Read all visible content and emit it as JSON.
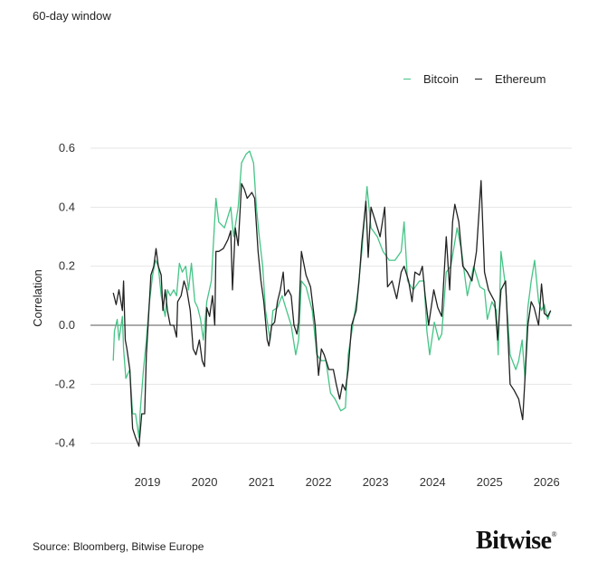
{
  "subtitle": "60-day window",
  "source": "Source: Bloomberg, Bitwise Europe",
  "logo": "Bitwise",
  "colors": {
    "bitcoin": "#45c486",
    "ethereum": "#222222",
    "grid": "#e6e6e6",
    "zero": "#555555"
  },
  "chart_data": {
    "type": "line",
    "title": "",
    "xlabel": "",
    "ylabel": "Correlation",
    "xlim": [
      2018.0,
      2026.44
    ],
    "ylim": [
      -0.42,
      0.6
    ],
    "yticks": [
      0.6,
      0.4,
      0.2,
      0.0,
      -0.2,
      -0.4
    ],
    "ytick_labels": [
      "0.6",
      "0.4",
      "0.2",
      "0.0",
      "-0.2",
      "-0.4"
    ],
    "xticks": [
      2019,
      2020,
      2021,
      2022,
      2023,
      2024,
      2025,
      2026
    ],
    "xtick_labels": [
      "2019",
      "2020",
      "2021",
      "2022",
      "2023",
      "2024",
      "2025",
      "2026"
    ],
    "grid": true,
    "legend_position": "top-right",
    "series": [
      {
        "name": "Bitcoin",
        "color": "#45c486",
        "points": [
          [
            2018.4,
            -0.12
          ],
          [
            2018.42,
            -0.02
          ],
          [
            2018.47,
            0.02
          ],
          [
            2018.5,
            -0.05
          ],
          [
            2018.56,
            0.03
          ],
          [
            2018.58,
            -0.08
          ],
          [
            2018.62,
            -0.18
          ],
          [
            2018.69,
            -0.15
          ],
          [
            2018.74,
            -0.3
          ],
          [
            2018.79,
            -0.3
          ],
          [
            2018.85,
            -0.38
          ],
          [
            2018.87,
            -0.3
          ],
          [
            2018.93,
            -0.15
          ],
          [
            2018.98,
            -0.05
          ],
          [
            2019.03,
            0.07
          ],
          [
            2019.09,
            0.17
          ],
          [
            2019.14,
            0.22
          ],
          [
            2019.19,
            0.2
          ],
          [
            2019.24,
            0.1
          ],
          [
            2019.31,
            0.03
          ],
          [
            2019.35,
            0.12
          ],
          [
            2019.4,
            0.1
          ],
          [
            2019.46,
            0.12
          ],
          [
            2019.51,
            0.1
          ],
          [
            2019.56,
            0.21
          ],
          [
            2019.61,
            0.18
          ],
          [
            2019.67,
            0.2
          ],
          [
            2019.72,
            0.12
          ],
          [
            2019.77,
            0.21
          ],
          [
            2019.83,
            0.08
          ],
          [
            2019.88,
            0.06
          ],
          [
            2019.93,
            0.02
          ],
          [
            2019.98,
            -0.05
          ],
          [
            2020.04,
            0.08
          ],
          [
            2020.12,
            0.15
          ],
          [
            2020.2,
            0.43
          ],
          [
            2020.25,
            0.35
          ],
          [
            2020.35,
            0.33
          ],
          [
            2020.46,
            0.4
          ],
          [
            2020.51,
            0.3
          ],
          [
            2020.59,
            0.4
          ],
          [
            2020.65,
            0.55
          ],
          [
            2020.73,
            0.58
          ],
          [
            2020.79,
            0.59
          ],
          [
            2020.86,
            0.55
          ],
          [
            2020.91,
            0.4
          ],
          [
            2020.96,
            0.3
          ],
          [
            2021.02,
            0.2
          ],
          [
            2021.07,
            0.05
          ],
          [
            2021.15,
            -0.05
          ],
          [
            2021.2,
            0.05
          ],
          [
            2021.28,
            0.06
          ],
          [
            2021.36,
            0.1
          ],
          [
            2021.44,
            0.05
          ],
          [
            2021.52,
            0.0
          ],
          [
            2021.6,
            -0.1
          ],
          [
            2021.65,
            -0.05
          ],
          [
            2021.7,
            0.15
          ],
          [
            2021.78,
            0.13
          ],
          [
            2021.89,
            0.05
          ],
          [
            2021.97,
            -0.1
          ],
          [
            2022.05,
            -0.12
          ],
          [
            2022.13,
            -0.12
          ],
          [
            2022.21,
            -0.23
          ],
          [
            2022.29,
            -0.25
          ],
          [
            2022.39,
            -0.29
          ],
          [
            2022.47,
            -0.28
          ],
          [
            2022.52,
            -0.1
          ],
          [
            2022.6,
            0.0
          ],
          [
            2022.68,
            0.1
          ],
          [
            2022.76,
            0.25
          ],
          [
            2022.85,
            0.47
          ],
          [
            2022.92,
            0.33
          ],
          [
            2023.03,
            0.3
          ],
          [
            2023.13,
            0.25
          ],
          [
            2023.24,
            0.22
          ],
          [
            2023.34,
            0.22
          ],
          [
            2023.45,
            0.25
          ],
          [
            2023.5,
            0.35
          ],
          [
            2023.56,
            0.15
          ],
          [
            2023.66,
            0.12
          ],
          [
            2023.77,
            0.15
          ],
          [
            2023.85,
            0.15
          ],
          [
            2023.9,
            -0.02
          ],
          [
            2023.95,
            -0.1
          ],
          [
            2024.03,
            0.01
          ],
          [
            2024.11,
            -0.05
          ],
          [
            2024.16,
            -0.03
          ],
          [
            2024.24,
            0.18
          ],
          [
            2024.32,
            0.2
          ],
          [
            2024.43,
            0.33
          ],
          [
            2024.51,
            0.25
          ],
          [
            2024.61,
            0.1
          ],
          [
            2024.72,
            0.2
          ],
          [
            2024.83,
            0.13
          ],
          [
            2024.91,
            0.12
          ],
          [
            2024.96,
            0.02
          ],
          [
            2025.04,
            0.08
          ],
          [
            2025.12,
            0.05
          ],
          [
            2025.15,
            -0.1
          ],
          [
            2025.2,
            0.25
          ],
          [
            2025.28,
            0.13
          ],
          [
            2025.36,
            -0.1
          ],
          [
            2025.46,
            -0.15
          ],
          [
            2025.51,
            -0.12
          ],
          [
            2025.57,
            -0.05
          ],
          [
            2025.62,
            -0.18
          ],
          [
            2025.67,
            0.06
          ],
          [
            2025.73,
            0.15
          ],
          [
            2025.79,
            0.22
          ],
          [
            2025.86,
            0.08
          ],
          [
            2025.91,
            0.05
          ],
          [
            2025.96,
            0.07
          ],
          [
            2026.02,
            0.02
          ],
          [
            2026.07,
            0.05
          ]
        ]
      },
      {
        "name": "Ethereum",
        "color": "#222222",
        "points": [
          [
            2018.4,
            0.11
          ],
          [
            2018.45,
            0.07
          ],
          [
            2018.5,
            0.12
          ],
          [
            2018.56,
            0.05
          ],
          [
            2018.58,
            0.15
          ],
          [
            2018.61,
            -0.05
          ],
          [
            2018.64,
            -0.08
          ],
          [
            2018.69,
            -0.15
          ],
          [
            2018.74,
            -0.35
          ],
          [
            2018.79,
            -0.38
          ],
          [
            2018.85,
            -0.41
          ],
          [
            2018.9,
            -0.3
          ],
          [
            2018.95,
            -0.3
          ],
          [
            2018.98,
            -0.1
          ],
          [
            2019.01,
            0.0
          ],
          [
            2019.06,
            0.17
          ],
          [
            2019.11,
            0.2
          ],
          [
            2019.15,
            0.26
          ],
          [
            2019.19,
            0.2
          ],
          [
            2019.24,
            0.17
          ],
          [
            2019.27,
            0.05
          ],
          [
            2019.31,
            0.12
          ],
          [
            2019.35,
            0.05
          ],
          [
            2019.4,
            0.0
          ],
          [
            2019.46,
            0.0
          ],
          [
            2019.51,
            -0.04
          ],
          [
            2019.53,
            0.08
          ],
          [
            2019.59,
            0.1
          ],
          [
            2019.64,
            0.15
          ],
          [
            2019.69,
            0.12
          ],
          [
            2019.75,
            0.05
          ],
          [
            2019.8,
            -0.08
          ],
          [
            2019.85,
            -0.1
          ],
          [
            2019.91,
            -0.05
          ],
          [
            2019.96,
            -0.12
          ],
          [
            2020.0,
            -0.14
          ],
          [
            2020.04,
            0.06
          ],
          [
            2020.09,
            0.03
          ],
          [
            2020.14,
            0.1
          ],
          [
            2020.18,
            0.0
          ],
          [
            2020.2,
            0.25
          ],
          [
            2020.25,
            0.25
          ],
          [
            2020.33,
            0.26
          ],
          [
            2020.41,
            0.29
          ],
          [
            2020.46,
            0.32
          ],
          [
            2020.49,
            0.12
          ],
          [
            2020.54,
            0.33
          ],
          [
            2020.59,
            0.27
          ],
          [
            2020.62,
            0.37
          ],
          [
            2020.65,
            0.48
          ],
          [
            2020.7,
            0.46
          ],
          [
            2020.75,
            0.43
          ],
          [
            2020.83,
            0.45
          ],
          [
            2020.88,
            0.43
          ],
          [
            2020.94,
            0.25
          ],
          [
            2020.99,
            0.15
          ],
          [
            2021.04,
            0.08
          ],
          [
            2021.1,
            -0.05
          ],
          [
            2021.13,
            -0.07
          ],
          [
            2021.18,
            0.0
          ],
          [
            2021.23,
            0.01
          ],
          [
            2021.28,
            0.08
          ],
          [
            2021.33,
            0.12
          ],
          [
            2021.38,
            0.18
          ],
          [
            2021.41,
            0.1
          ],
          [
            2021.47,
            0.12
          ],
          [
            2021.52,
            0.1
          ],
          [
            2021.57,
            0.0
          ],
          [
            2021.62,
            -0.03
          ],
          [
            2021.65,
            0.01
          ],
          [
            2021.7,
            0.25
          ],
          [
            2021.78,
            0.17
          ],
          [
            2021.86,
            0.13
          ],
          [
            2021.94,
            0.0
          ],
          [
            2022.0,
            -0.17
          ],
          [
            2022.05,
            -0.08
          ],
          [
            2022.1,
            -0.1
          ],
          [
            2022.18,
            -0.15
          ],
          [
            2022.26,
            -0.15
          ],
          [
            2022.31,
            -0.2
          ],
          [
            2022.37,
            -0.25
          ],
          [
            2022.42,
            -0.2
          ],
          [
            2022.47,
            -0.22
          ],
          [
            2022.52,
            -0.15
          ],
          [
            2022.58,
            0.0
          ],
          [
            2022.66,
            0.05
          ],
          [
            2022.71,
            0.15
          ],
          [
            2022.76,
            0.28
          ],
          [
            2022.83,
            0.42
          ],
          [
            2022.87,
            0.23
          ],
          [
            2022.92,
            0.4
          ],
          [
            2023.0,
            0.35
          ],
          [
            2023.08,
            0.3
          ],
          [
            2023.16,
            0.4
          ],
          [
            2023.21,
            0.13
          ],
          [
            2023.29,
            0.15
          ],
          [
            2023.37,
            0.09
          ],
          [
            2023.45,
            0.18
          ],
          [
            2023.5,
            0.2
          ],
          [
            2023.58,
            0.15
          ],
          [
            2023.64,
            0.08
          ],
          [
            2023.69,
            0.18
          ],
          [
            2023.77,
            0.17
          ],
          [
            2023.82,
            0.2
          ],
          [
            2023.87,
            0.1
          ],
          [
            2023.93,
            0.0
          ],
          [
            2024.02,
            0.12
          ],
          [
            2024.09,
            0.06
          ],
          [
            2024.16,
            0.03
          ],
          [
            2024.24,
            0.3
          ],
          [
            2024.3,
            0.12
          ],
          [
            2024.35,
            0.35
          ],
          [
            2024.39,
            0.41
          ],
          [
            2024.46,
            0.35
          ],
          [
            2024.53,
            0.2
          ],
          [
            2024.61,
            0.18
          ],
          [
            2024.69,
            0.15
          ],
          [
            2024.77,
            0.25
          ],
          [
            2024.85,
            0.49
          ],
          [
            2024.91,
            0.18
          ],
          [
            2024.98,
            0.12
          ],
          [
            2025.09,
            0.08
          ],
          [
            2025.14,
            -0.05
          ],
          [
            2025.2,
            0.12
          ],
          [
            2025.28,
            0.15
          ],
          [
            2025.36,
            -0.2
          ],
          [
            2025.43,
            -0.22
          ],
          [
            2025.51,
            -0.25
          ],
          [
            2025.58,
            -0.32
          ],
          [
            2025.63,
            -0.15
          ],
          [
            2025.67,
            0.0
          ],
          [
            2025.73,
            0.08
          ],
          [
            2025.78,
            0.06
          ],
          [
            2025.86,
            0.0
          ],
          [
            2025.91,
            0.14
          ],
          [
            2025.96,
            0.04
          ],
          [
            2026.02,
            0.03
          ],
          [
            2026.07,
            0.05
          ]
        ]
      }
    ]
  }
}
